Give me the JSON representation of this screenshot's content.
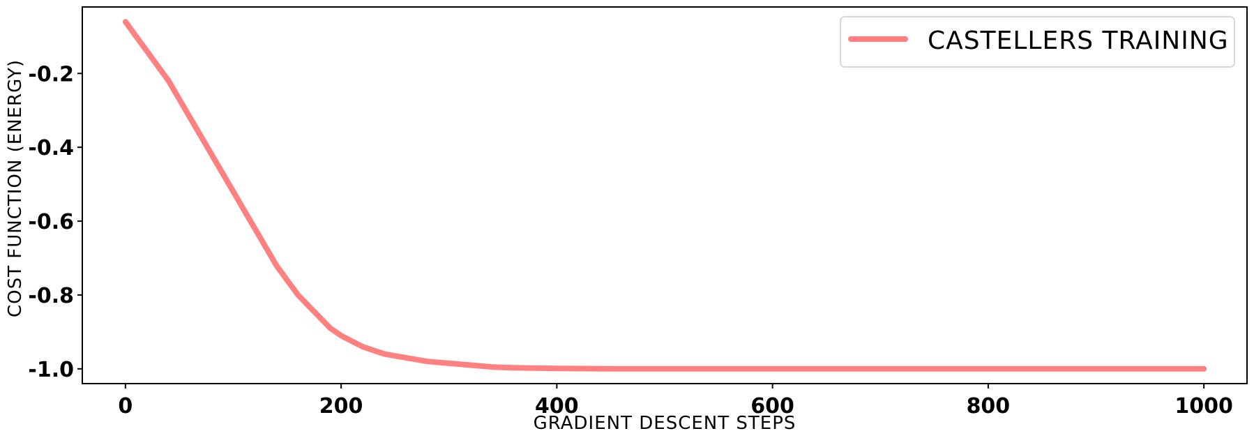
{
  "chart_data": {
    "type": "line",
    "title": "",
    "xlabel": "GRADIENT DESCENT STEPS",
    "ylabel": "COST FUNCTION (ENERGY)",
    "xlim": [
      -40,
      1040
    ],
    "ylim": [
      -1.04,
      -0.02
    ],
    "xticks": [
      0,
      200,
      400,
      600,
      800,
      1000
    ],
    "yticks": [
      -1.0,
      -0.8,
      -0.6,
      -0.4,
      -0.2
    ],
    "xtick_labels": [
      "0",
      "200",
      "400",
      "600",
      "800",
      "1000"
    ],
    "ytick_labels": [
      "-1.0",
      "-0.8",
      "-0.6",
      "-0.4",
      "-0.2"
    ],
    "grid": false,
    "legend_position": "top-right",
    "series": [
      {
        "name": "CASTELLERS TRAINING",
        "color": "#ff8080",
        "x": [
          0,
          10,
          20,
          30,
          40,
          50,
          60,
          70,
          80,
          90,
          100,
          110,
          120,
          130,
          140,
          150,
          160,
          170,
          180,
          190,
          200,
          220,
          240,
          260,
          280,
          300,
          320,
          340,
          360,
          380,
          400,
          450,
          500,
          550,
          600,
          650,
          700,
          750,
          800,
          850,
          900,
          950,
          1000
        ],
        "values": [
          -0.06,
          -0.1,
          -0.14,
          -0.18,
          -0.22,
          -0.27,
          -0.32,
          -0.37,
          -0.42,
          -0.47,
          -0.52,
          -0.57,
          -0.62,
          -0.67,
          -0.72,
          -0.76,
          -0.8,
          -0.83,
          -0.86,
          -0.89,
          -0.91,
          -0.94,
          -0.96,
          -0.97,
          -0.98,
          -0.985,
          -0.99,
          -0.995,
          -0.997,
          -0.998,
          -0.999,
          -1.0,
          -1.0,
          -1.0,
          -1.0,
          -1.0,
          -1.0,
          -1.0,
          -1.0,
          -1.0,
          -1.0,
          -1.0,
          -1.0
        ]
      }
    ]
  }
}
